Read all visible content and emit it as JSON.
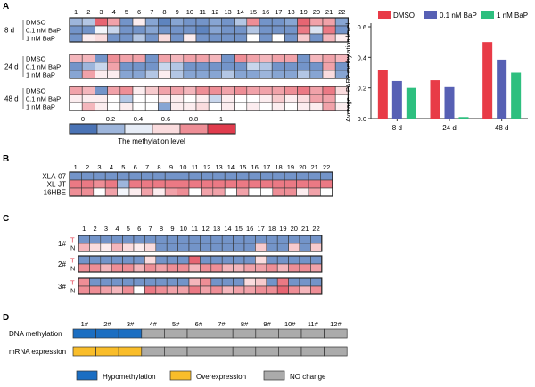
{
  "colors": {
    "heat_scale": [
      "#4a73b5",
      "#8eaad6",
      "#d7e1f1",
      "#ffffff",
      "#f6c4c8",
      "#ec808a",
      "#e03c4d"
    ],
    "gene_status": {
      "hypo": "#1b6ec2",
      "over": "#f9bd2a",
      "none": "#ababab"
    },
    "bars": [
      "#e83b47",
      "#5760b4",
      "#2ebf7f"
    ]
  },
  "panelA": {
    "label": "A",
    "columns": [
      "1",
      "2",
      "3",
      "4",
      "5",
      "6",
      "7",
      "8",
      "9",
      "10",
      "11",
      "12",
      "13",
      "14",
      "15",
      "16",
      "17",
      "18",
      "19",
      "20",
      "21",
      "22"
    ],
    "groups": [
      {
        "time": "8 d",
        "treatments": [
          "DMSO",
          "0.1 nM BaP",
          "1 nM BaP"
        ],
        "rows": [
          [
            0.2,
            0.25,
            0.9,
            0.75,
            0.1,
            0.55,
            0.15,
            0.05,
            0.15,
            0.1,
            0.1,
            0.15,
            0.1,
            0.25,
            0.8,
            0.1,
            0.1,
            0.15,
            0.9,
            0.75,
            0.75,
            0.15
          ],
          [
            0.1,
            0.1,
            0.45,
            0.3,
            0.1,
            0.1,
            0.15,
            0.1,
            0.1,
            0.1,
            0.05,
            0.15,
            0.1,
            0.1,
            0.25,
            0.1,
            0.1,
            0.1,
            0.85,
            0.35,
            0.85,
            0.1
          ],
          [
            0.1,
            0.55,
            0.6,
            0.1,
            0.1,
            0.25,
            0.1,
            0.6,
            0.1,
            0.55,
            0.1,
            0.1,
            0.1,
            0.1,
            0.5,
            0.1,
            0.5,
            0.1,
            0.65,
            0.1,
            0.7,
            0.55
          ]
        ]
      },
      {
        "time": "24 d",
        "treatments": [
          "DMSO",
          "0.1 nM BaP",
          "1 nM BaP"
        ],
        "rows": [
          [
            0.7,
            0.7,
            0.1,
            0.8,
            0.75,
            0.75,
            0.1,
            0.75,
            0.7,
            0.75,
            0.75,
            0.7,
            0.1,
            0.8,
            0.75,
            0.7,
            0.75,
            0.75,
            0.1,
            0.7,
            0.75,
            0.7
          ],
          [
            0.1,
            0.2,
            0.3,
            0.75,
            0.1,
            0.1,
            0.1,
            0.3,
            0.25,
            0.1,
            0.1,
            0.1,
            0.1,
            0.1,
            0.3,
            0.25,
            0.1,
            0.1,
            0.1,
            0.1,
            0.75,
            0.1
          ],
          [
            0.15,
            0.75,
            0.55,
            0.55,
            0.15,
            0.15,
            0.25,
            0.55,
            0.25,
            0.15,
            0.15,
            0.15,
            0.25,
            0.15,
            0.15,
            0.2,
            0.15,
            0.15,
            0.25,
            0.15,
            0.6,
            0.15
          ]
        ]
      },
      {
        "time": "48 d",
        "treatments": [
          "DMSO",
          "0.1 nM BaP",
          "1 nM BaP"
        ],
        "rows": [
          [
            0.75,
            0.7,
            0.1,
            0.75,
            0.8,
            0.55,
            0.65,
            0.75,
            0.75,
            0.7,
            0.8,
            0.8,
            0.75,
            0.8,
            0.75,
            0.75,
            0.75,
            0.8,
            0.85,
            0.75,
            0.85,
            0.6
          ],
          [
            0.55,
            0.55,
            0.55,
            0.5,
            0.25,
            0.5,
            0.5,
            0.55,
            0.55,
            0.5,
            0.55,
            0.3,
            0.55,
            0.5,
            0.5,
            0.55,
            0.65,
            0.55,
            0.6,
            0.75,
            0.75,
            0.5
          ],
          [
            0.5,
            0.7,
            0.55,
            0.5,
            0.55,
            0.5,
            0.5,
            0.15,
            0.55,
            0.55,
            0.6,
            0.5,
            0.55,
            0.5,
            0.55,
            0.5,
            0.55,
            0.5,
            0.55,
            0.55,
            0.75,
            0.55
          ]
        ]
      }
    ],
    "legend_ticks": [
      "0",
      "0.2",
      "0.4",
      "0.6",
      "0.8",
      "1"
    ],
    "legend_title": "The methylation level"
  },
  "chart_data": {
    "type": "bar",
    "categories": [
      "8 d",
      "24 d",
      "48 d"
    ],
    "series": [
      {
        "name": "DMSO",
        "values": [
          0.32,
          0.25,
          0.5
        ]
      },
      {
        "name": "0.1 nM BaP",
        "values": [
          0.245,
          0.205,
          0.385
        ]
      },
      {
        "name": "1 nM BaP",
        "values": [
          0.2,
          0.01,
          0.3
        ]
      }
    ],
    "ylabel": "Average LPAR2 methylation level",
    "yticks": [
      "0.0",
      "0.2",
      "0.4",
      "0.6"
    ],
    "ylim": [
      0,
      0.6
    ],
    "legend_position": "top"
  },
  "panelB": {
    "label": "B",
    "columns": [
      "1",
      "2",
      "3",
      "4",
      "5",
      "6",
      "7",
      "8",
      "9",
      "10",
      "11",
      "12",
      "13",
      "14",
      "15",
      "16",
      "17",
      "18",
      "19",
      "20",
      "21",
      "22"
    ],
    "rows": [
      {
        "name": "XLA-07",
        "values": [
          0.1,
          0.1,
          0.1,
          0.1,
          0.1,
          0.1,
          0.1,
          0.1,
          0.1,
          0.1,
          0.1,
          0.1,
          0.1,
          0.1,
          0.1,
          0.1,
          0.1,
          0.1,
          0.1,
          0.1,
          0.1,
          0.1
        ]
      },
      {
        "name": "XL-JT",
        "values": [
          0.85,
          0.85,
          0.8,
          0.85,
          0.2,
          0.85,
          0.85,
          0.85,
          0.85,
          0.85,
          0.85,
          0.85,
          0.85,
          0.85,
          0.85,
          0.85,
          0.85,
          0.85,
          0.85,
          0.85,
          0.85,
          0.85
        ]
      },
      {
        "name": "16HBE",
        "values": [
          0.8,
          0.8,
          0.5,
          0.75,
          0.45,
          0.55,
          0.75,
          0.55,
          0.75,
          0.8,
          0.5,
          0.75,
          0.75,
          0.5,
          0.75,
          0.5,
          0.5,
          0.8,
          0.8,
          0.55,
          0.75,
          0.5
        ]
      }
    ]
  },
  "panelC": {
    "label": "C",
    "columns": [
      "1",
      "2",
      "3",
      "4",
      "5",
      "6",
      "7",
      "8",
      "9",
      "10",
      "11",
      "12",
      "13",
      "14",
      "15",
      "16",
      "17",
      "18",
      "19",
      "20",
      "21",
      "22"
    ],
    "samples": [
      {
        "name": "1#",
        "row_labels": [
          "T",
          "N"
        ],
        "rows": [
          [
            0.1,
            0.1,
            0.1,
            0.1,
            0.1,
            0.1,
            0.1,
            0.1,
            0.1,
            0.1,
            0.1,
            0.1,
            0.1,
            0.1,
            0.1,
            0.1,
            0.1,
            0.1,
            0.1,
            0.1,
            0.1,
            0.1
          ],
          [
            0.7,
            0.6,
            0.55,
            0.7,
            0.6,
            0.55,
            0.6,
            0.1,
            0.1,
            0.1,
            0.1,
            0.1,
            0.1,
            0.1,
            0.1,
            0.1,
            0.65,
            0.1,
            0.1,
            0.65,
            0.1,
            0.65
          ]
        ]
      },
      {
        "name": "2#",
        "row_labels": [
          "T",
          "N"
        ],
        "rows": [
          [
            0.1,
            0.1,
            0.1,
            0.1,
            0.1,
            0.1,
            0.6,
            0.1,
            0.1,
            0.1,
            0.9,
            0.1,
            0.1,
            0.1,
            0.1,
            0.1,
            0.6,
            0.1,
            0.1,
            0.1,
            0.1,
            0.1
          ],
          [
            0.8,
            0.8,
            0.7,
            0.8,
            0.8,
            0.7,
            0.8,
            0.75,
            0.8,
            0.8,
            0.7,
            0.8,
            0.8,
            0.7,
            0.7,
            0.75,
            0.75,
            0.8,
            0.7,
            0.8,
            0.8,
            0.75
          ]
        ]
      },
      {
        "name": "3#",
        "row_labels": [
          "T",
          "N"
        ],
        "rows": [
          [
            0.8,
            0.1,
            0.1,
            0.1,
            0.1,
            0.1,
            0.1,
            0.1,
            0.1,
            0.1,
            0.7,
            0.8,
            0.1,
            0.1,
            0.1,
            0.6,
            0.65,
            0.1,
            0.85,
            0.1,
            0.1,
            0.1
          ],
          [
            0.8,
            0.8,
            0.75,
            0.7,
            0.8,
            0.5,
            0.85,
            0.8,
            0.75,
            0.75,
            0.85,
            0.75,
            0.8,
            0.7,
            0.75,
            0.75,
            0.8,
            0.8,
            0.9,
            0.8,
            0.7,
            0.8
          ]
        ]
      }
    ]
  },
  "panelD": {
    "label": "D",
    "columns": [
      "1#",
      "2#",
      "3#",
      "4#",
      "5#",
      "6#",
      "7#",
      "8#",
      "9#",
      "10#",
      "11#",
      "12#"
    ],
    "rows": [
      {
        "name": "DNA methylation",
        "status": [
          "hypo",
          "hypo",
          "hypo",
          "none",
          "none",
          "none",
          "none",
          "none",
          "none",
          "none",
          "none",
          "none"
        ]
      },
      {
        "name": "mRNA expression",
        "status": [
          "over",
          "over",
          "over",
          "none",
          "none",
          "none",
          "none",
          "none",
          "none",
          "none",
          "none",
          "none"
        ]
      }
    ],
    "legend": [
      {
        "key": "hypo",
        "label": "Hypomethylation"
      },
      {
        "key": "over",
        "label": "Overexpression"
      },
      {
        "key": "none",
        "label": "NO change"
      }
    ]
  }
}
